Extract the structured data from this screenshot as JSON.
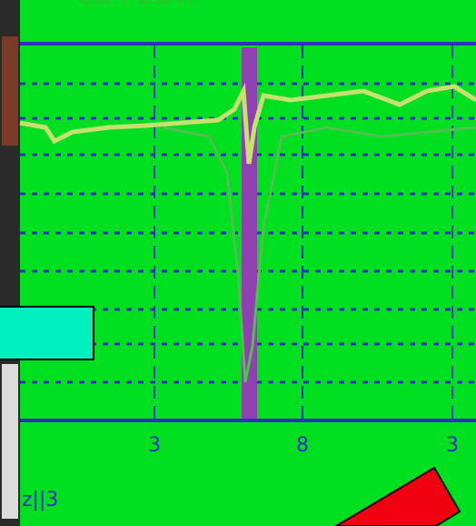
{
  "header": {
    "title": "ean EDR"
  },
  "axis": {
    "ticks": [
      "3",
      "8",
      "3"
    ]
  },
  "footer": {
    "label": "z||3"
  }
}
